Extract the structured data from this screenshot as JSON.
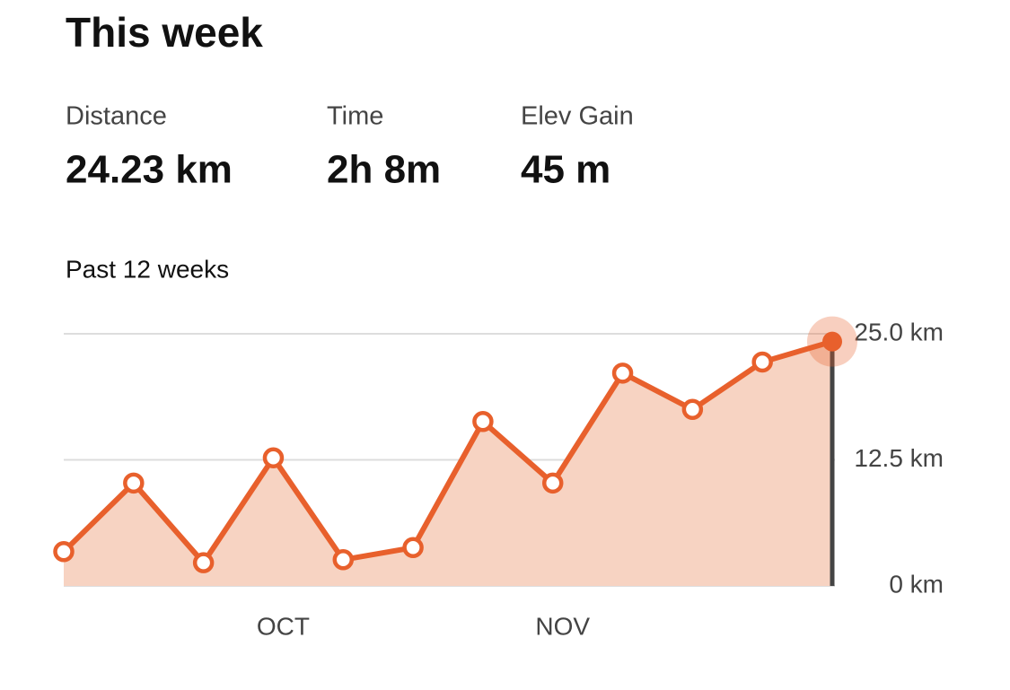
{
  "header": {
    "title": "This week"
  },
  "stats": [
    {
      "label": "Distance",
      "value": "24.23 km"
    },
    {
      "label": "Time",
      "value": "2h 8m"
    },
    {
      "label": "Elev Gain",
      "value": "45 m"
    }
  ],
  "chart_data": {
    "type": "area",
    "subtitle": "Past 12 weeks",
    "categories": [
      null,
      null,
      null,
      "OCT",
      null,
      null,
      null,
      "NOV",
      null,
      null,
      null,
      null
    ],
    "values": [
      3.4,
      10.2,
      2.3,
      12.7,
      2.6,
      3.8,
      16.3,
      10.2,
      21.1,
      17.5,
      22.2,
      24.23
    ],
    "color": "#e8602c",
    "ylim": [
      0,
      25
    ],
    "yticks": [
      {
        "value": 0,
        "label": "0 km"
      },
      {
        "value": 12.5,
        "label": "12.5 km"
      },
      {
        "value": 25,
        "label": "25.0 km"
      }
    ],
    "grid": true
  }
}
